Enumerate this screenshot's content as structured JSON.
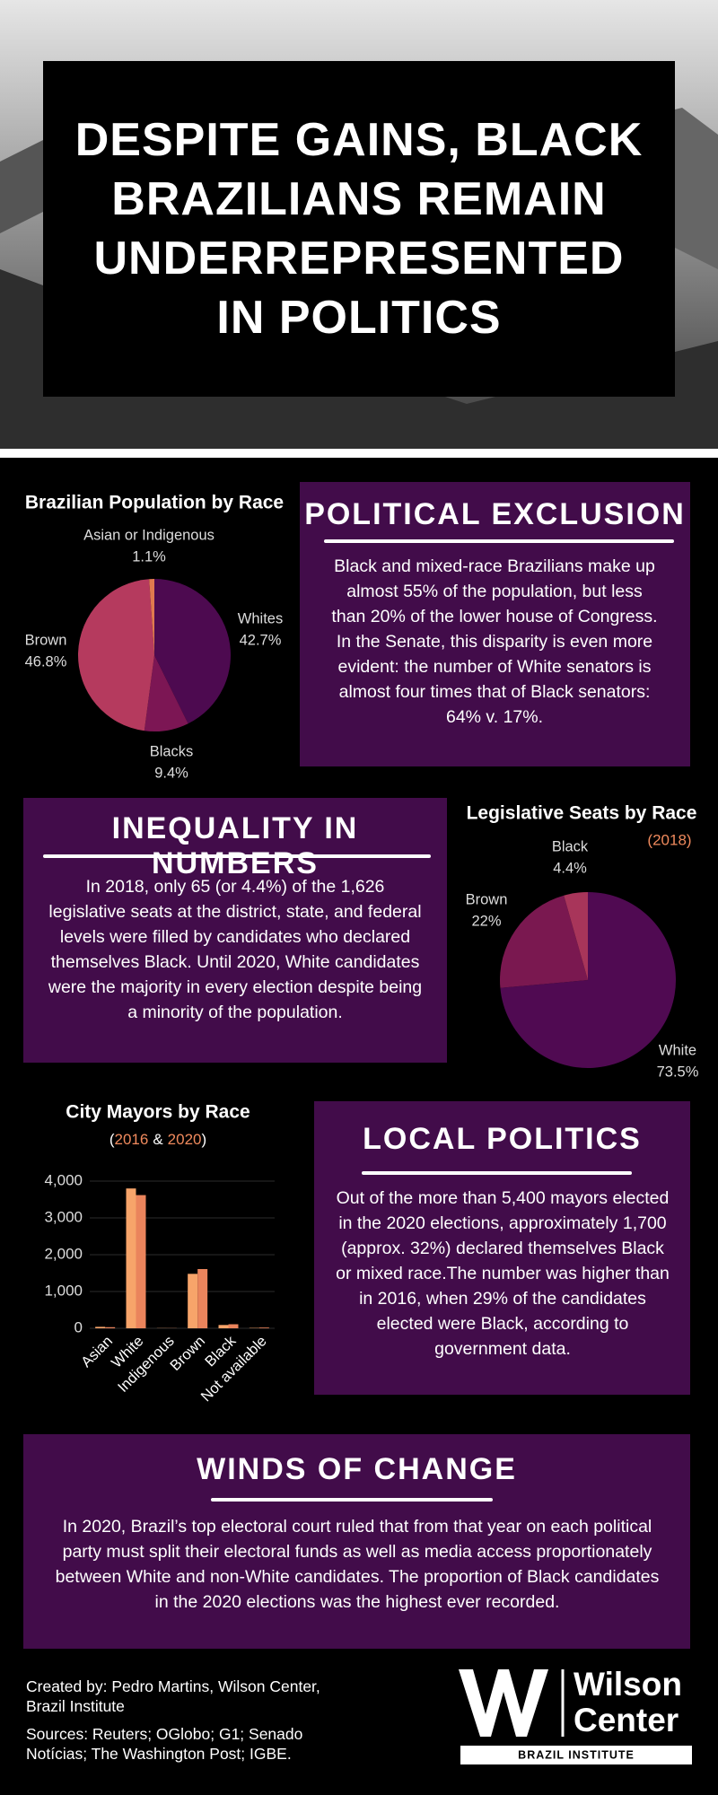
{
  "header": {
    "title": "DESPITE GAINS, BLACK BRAZILIANS REMAIN UNDERREPRESENTED IN POLITICS"
  },
  "sections": [
    {
      "title": "POLITICAL EXCLUSION",
      "body": "Black and mixed-race Brazilians make up almost 55% of the population, but less than 20% of the lower house of Congress. In the Senate, this disparity is even more evident: the number of White senators is almost four times that of Black senators: 64% v. 17%."
    },
    {
      "title": "INEQUALITY IN NUMBERS",
      "body": "In 2018, only 65 (or 4.4%) of the 1,626 legislative seats at the district, state, and federal levels were filled by candidates who declared themselves Black. Until 2020, White candidates were the majority in every election despite being a minority of the population."
    },
    {
      "title": "LOCAL POLITICS",
      "body": "Out of the more than 5,400 mayors elected in the 2020 elections, approximately 1,700 (approx. 32%) declared themselves Black or mixed race.The number was higher than in 2016, when 29% of the candidates elected were Black, according to government data."
    },
    {
      "title": "WINDS OF CHANGE",
      "body": "In 2020, Brazil’s top electoral court ruled that from that year on each political party must split their electoral funds as well as media access proportionately between White and non-White candidates. The proportion of Black candidates in the 2020 elections was the highest ever recorded."
    }
  ],
  "chart_data": [
    {
      "type": "pie",
      "title": "Brazilian Population by Race",
      "categories": [
        "Whites",
        "Blacks",
        "Brown",
        "Asian or Indigenous"
      ],
      "values": [
        42.7,
        9.4,
        46.8,
        1.1
      ],
      "value_labels": [
        "42.7%",
        "9.4%",
        "46.8%",
        "1.1%"
      ],
      "colors": [
        "#4d0a50",
        "#7c1654",
        "#b53a5e",
        "#e07a4f"
      ]
    },
    {
      "type": "pie",
      "title": "Legislative Seats by Race",
      "subtitle": "(2018)",
      "categories": [
        "White",
        "Brown",
        "Black"
      ],
      "values": [
        73.5,
        22,
        4.4
      ],
      "value_labels": [
        "73.5%",
        "22%",
        "4.4%"
      ],
      "colors": [
        "#500a52",
        "#7a1850",
        "#a8355a"
      ]
    },
    {
      "type": "bar",
      "title": "City Mayors by Race",
      "subtitle_punctuation": [
        "(",
        "&",
        ")"
      ],
      "categories": [
        "Asian",
        "White",
        "Indigenous",
        "Brown",
        "Black",
        "Not available"
      ],
      "series": [
        {
          "name": "2016",
          "color": "#f7a46a",
          "values": [
            40,
            3800,
            5,
            1480,
            90,
            10
          ]
        },
        {
          "name": "2020",
          "color": "#ea845c",
          "values": [
            30,
            3620,
            5,
            1610,
            110,
            20
          ]
        }
      ],
      "ylim": [
        0,
        4000
      ],
      "yticks": [
        0,
        {
          "value": 1000,
          "label": "1,000"
        },
        {
          "value": 2000,
          "label": "2,000"
        },
        {
          "value": 3000,
          "label": "3,000"
        },
        {
          "value": 4000,
          "label": "4,000"
        }
      ],
      "grid": true
    }
  ],
  "footer": {
    "created_by": "Created by: Pedro Martins, Wilson Center, Brazil Institute",
    "sources": "Sources: Reuters; OGlobo; G1; Senado Notícias; The Washington Post; IGBE.",
    "logo": [
      "Wilson",
      "Center",
      "BRAZIL INSTITUTE"
    ]
  }
}
